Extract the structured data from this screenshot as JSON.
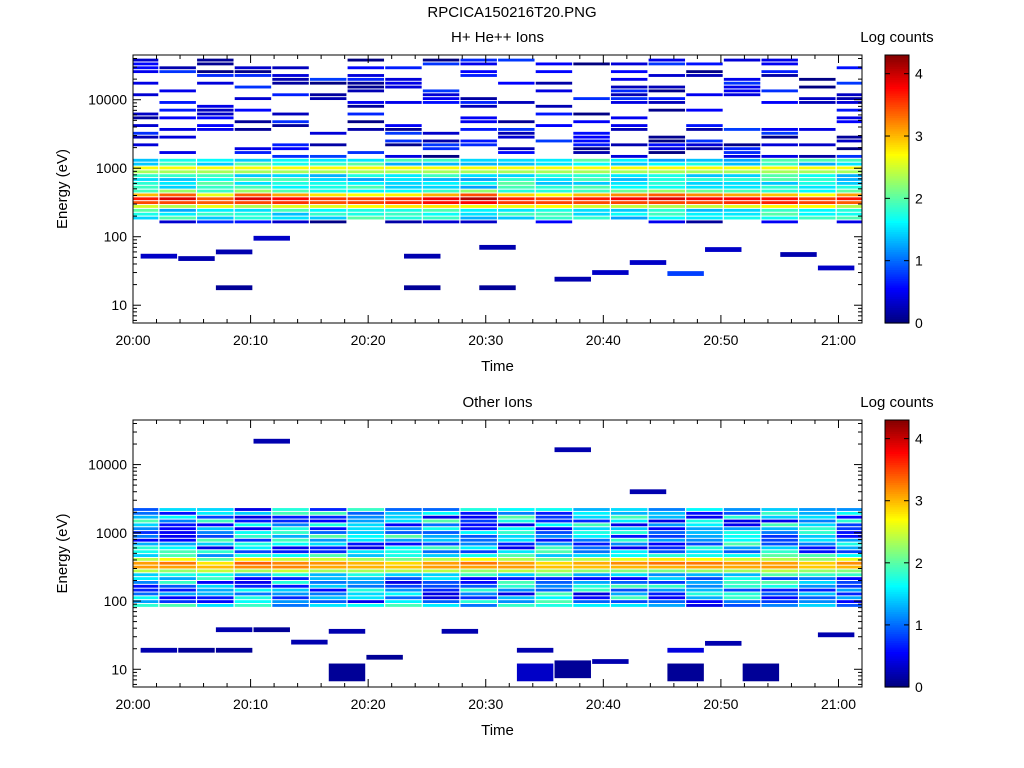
{
  "figure_title": "RPCICA150216T20.PNG",
  "chart_data": [
    {
      "type": "heatmap",
      "title": "H+ He++ Ions",
      "xlabel": "Time",
      "ylabel": "Energy (eV)",
      "x_ticks": [
        "20:00",
        "20:10",
        "20:20",
        "20:30",
        "20:40",
        "20:50",
        "21:00"
      ],
      "x_range_minutes": [
        0,
        62
      ],
      "y_scale": "log",
      "y_ticks": [
        10,
        100,
        1000,
        10000
      ],
      "y_range": [
        5.5,
        45000
      ],
      "colorbar": {
        "label": "Log counts",
        "range": [
          0,
          4.3
        ],
        "ticks": [
          0,
          1,
          2,
          3,
          4
        ]
      },
      "time_bins_minutes": [
        0.6,
        3.8,
        7.0,
        10.2,
        13.4,
        16.6,
        19.8,
        23.0,
        26.2,
        29.4,
        32.6,
        35.8,
        39.0,
        42.2,
        45.4,
        48.6,
        51.8,
        55.0,
        58.2,
        61.4
      ],
      "peak_energy_eV": [
        340,
        350,
        330,
        350,
        340,
        335,
        330,
        330,
        335,
        345,
        335,
        330,
        340,
        345,
        350,
        345,
        340,
        335,
        330,
        345
      ],
      "peak_log_counts": [
        3.7,
        3.9,
        3.5,
        3.9,
        3.8,
        3.6,
        3.6,
        3.7,
        3.9,
        4.1,
        3.7,
        3.6,
        3.7,
        3.8,
        3.9,
        3.8,
        3.8,
        3.8,
        3.6,
        3.7
      ],
      "secondary_peak_energy_eV": 950,
      "secondary_peak_log_counts": 2.8,
      "low_energy_points": [
        {
          "t": 2.2,
          "e": 52,
          "v": 0.3
        },
        {
          "t": 5.4,
          "e": 48,
          "v": 0.2
        },
        {
          "t": 8.6,
          "e": 18,
          "v": 0.1
        },
        {
          "t": 8.6,
          "e": 60,
          "v": 0.2
        },
        {
          "t": 11.8,
          "e": 95,
          "v": 0.3
        },
        {
          "t": 24.6,
          "e": 18,
          "v": 0.1
        },
        {
          "t": 24.6,
          "e": 52,
          "v": 0.2
        },
        {
          "t": 31.0,
          "e": 18,
          "v": 0.1
        },
        {
          "t": 31.0,
          "e": 70,
          "v": 0.2
        },
        {
          "t": 37.4,
          "e": 24,
          "v": 0.2
        },
        {
          "t": 40.6,
          "e": 30,
          "v": 0.3
        },
        {
          "t": 43.8,
          "e": 42,
          "v": 0.3
        },
        {
          "t": 47.0,
          "e": 29,
          "v": 0.8
        },
        {
          "t": 50.2,
          "e": 65,
          "v": 0.3
        },
        {
          "t": 56.6,
          "e": 55,
          "v": 0.2
        },
        {
          "t": 59.8,
          "e": 35,
          "v": 0.3
        }
      ]
    },
    {
      "type": "heatmap",
      "title": "Other Ions",
      "xlabel": "Time",
      "ylabel": "Energy (eV)",
      "x_ticks": [
        "20:00",
        "20:10",
        "20:20",
        "20:30",
        "20:40",
        "20:50",
        "21:00"
      ],
      "x_range_minutes": [
        0,
        62
      ],
      "y_scale": "log",
      "y_ticks": [
        10,
        100,
        1000,
        10000
      ],
      "y_range": [
        5.5,
        45000
      ],
      "colorbar": {
        "label": "Log counts",
        "range": [
          0,
          4.3
        ],
        "ticks": [
          0,
          1,
          2,
          3,
          4
        ]
      },
      "time_bins_minutes": [
        0.6,
        3.8,
        7.0,
        10.2,
        13.4,
        16.6,
        19.8,
        23.0,
        26.2,
        29.4,
        32.6,
        35.8,
        39.0,
        42.2,
        45.4,
        48.6,
        51.8,
        55.0,
        58.2,
        61.4
      ],
      "peak_energy_eV": [
        330,
        340,
        320,
        340,
        330,
        335,
        330,
        325,
        330,
        340,
        330,
        325,
        335,
        340,
        345,
        340,
        335,
        330,
        330,
        340
      ],
      "peak_log_counts": [
        3.2,
        3.3,
        3.0,
        3.4,
        3.3,
        3.2,
        3.1,
        3.0,
        3.2,
        3.3,
        3.2,
        3.0,
        3.1,
        3.2,
        3.3,
        3.3,
        3.2,
        3.2,
        3.0,
        3.2
      ],
      "low_energy_points": [
        {
          "t": 2.2,
          "e": 19,
          "v": 0.2
        },
        {
          "t": 5.4,
          "e": 19,
          "v": 0.1
        },
        {
          "t": 8.6,
          "e": 19,
          "v": 0.1
        },
        {
          "t": 8.6,
          "e": 38,
          "v": 0.2
        },
        {
          "t": 11.8,
          "e": 38,
          "v": 0.1
        },
        {
          "t": 11.8,
          "e": 22000,
          "v": 0.2
        },
        {
          "t": 15.0,
          "e": 25,
          "v": 0.2
        },
        {
          "t": 18.2,
          "e": 9,
          "v": 0.1
        },
        {
          "t": 18.2,
          "e": 36,
          "v": 0.2
        },
        {
          "t": 21.4,
          "e": 15,
          "v": 0.1
        },
        {
          "t": 27.8,
          "e": 36,
          "v": 0.2
        },
        {
          "t": 34.2,
          "e": 9,
          "v": 0.3
        },
        {
          "t": 34.2,
          "e": 19,
          "v": 0.2
        },
        {
          "t": 37.4,
          "e": 10,
          "v": 0.1
        },
        {
          "t": 37.4,
          "e": 16500,
          "v": 0.2
        },
        {
          "t": 40.6,
          "e": 13,
          "v": 0.2
        },
        {
          "t": 43.8,
          "e": 4000,
          "v": 0.2
        },
        {
          "t": 47.0,
          "e": 9,
          "v": 0.1
        },
        {
          "t": 47.0,
          "e": 19,
          "v": 0.4
        },
        {
          "t": 50.2,
          "e": 24,
          "v": 0.2
        },
        {
          "t": 53.4,
          "e": 9,
          "v": 0.1
        },
        {
          "t": 59.8,
          "e": 32,
          "v": 0.2
        }
      ]
    }
  ]
}
